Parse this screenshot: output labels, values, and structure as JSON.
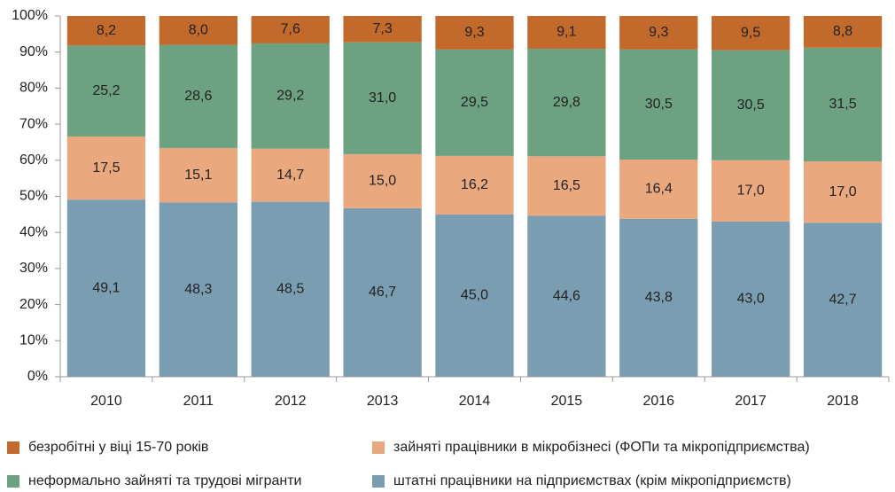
{
  "chart_data": {
    "type": "stacked_bar",
    "categories": [
      "2010",
      "2011",
      "2012",
      "2013",
      "2014",
      "2015",
      "2016",
      "2017",
      "2018"
    ],
    "series": [
      {
        "name": "штатні працівники на підприємствах (крім мікропідприємств)",
        "color": "#7b9db2",
        "values": [
          49.1,
          48.3,
          48.5,
          46.7,
          45.0,
          44.6,
          43.8,
          43.0,
          42.7
        ],
        "value_labels": [
          "49,1",
          "48,3",
          "48,5",
          "46,7",
          "45,0",
          "44,6",
          "43,8",
          "43,0",
          "42,7"
        ]
      },
      {
        "name": "зайняті працівники в мікробізнесі (ФОПи та мікропідприємства)",
        "color": "#eaa87f",
        "values": [
          17.5,
          15.1,
          14.7,
          15.0,
          16.2,
          16.5,
          16.4,
          17.0,
          17.0
        ],
        "value_labels": [
          "17,5",
          "15,1",
          "14,7",
          "15,0",
          "16,2",
          "16,5",
          "16,4",
          "17,0",
          "17,0"
        ]
      },
      {
        "name": "неформально зайняті та трудові мігранти",
        "color": "#6ca282",
        "values": [
          25.2,
          28.6,
          29.2,
          31.0,
          29.5,
          29.8,
          30.5,
          30.5,
          31.5
        ],
        "value_labels": [
          "25,2",
          "28,6",
          "29,2",
          "31,0",
          "29,5",
          "29,8",
          "30,5",
          "30,5",
          "31,5"
        ]
      },
      {
        "name": "безробітні у віці 15-70 років",
        "color": "#c2692c",
        "values": [
          8.2,
          8.0,
          7.6,
          7.3,
          9.3,
          9.1,
          9.3,
          9.5,
          8.8
        ],
        "value_labels": [
          "8,2",
          "8,0",
          "7,6",
          "7,3",
          "9,3",
          "9,1",
          "9,3",
          "9,5",
          "8,8"
        ]
      }
    ],
    "ylim": [
      0,
      100
    ],
    "yticks": [
      {
        "value": 0,
        "label": "0%"
      },
      {
        "value": 10,
        "label": "10%"
      },
      {
        "value": 20,
        "label": "20%"
      },
      {
        "value": 30,
        "label": "30%"
      },
      {
        "value": 40,
        "label": "40%"
      },
      {
        "value": 50,
        "label": "50%"
      },
      {
        "value": 60,
        "label": "60%"
      },
      {
        "value": 70,
        "label": "70%"
      },
      {
        "value": 80,
        "label": "80%"
      },
      {
        "value": 90,
        "label": "90%"
      },
      {
        "value": 100,
        "label": "100%"
      }
    ],
    "grid": false
  }
}
